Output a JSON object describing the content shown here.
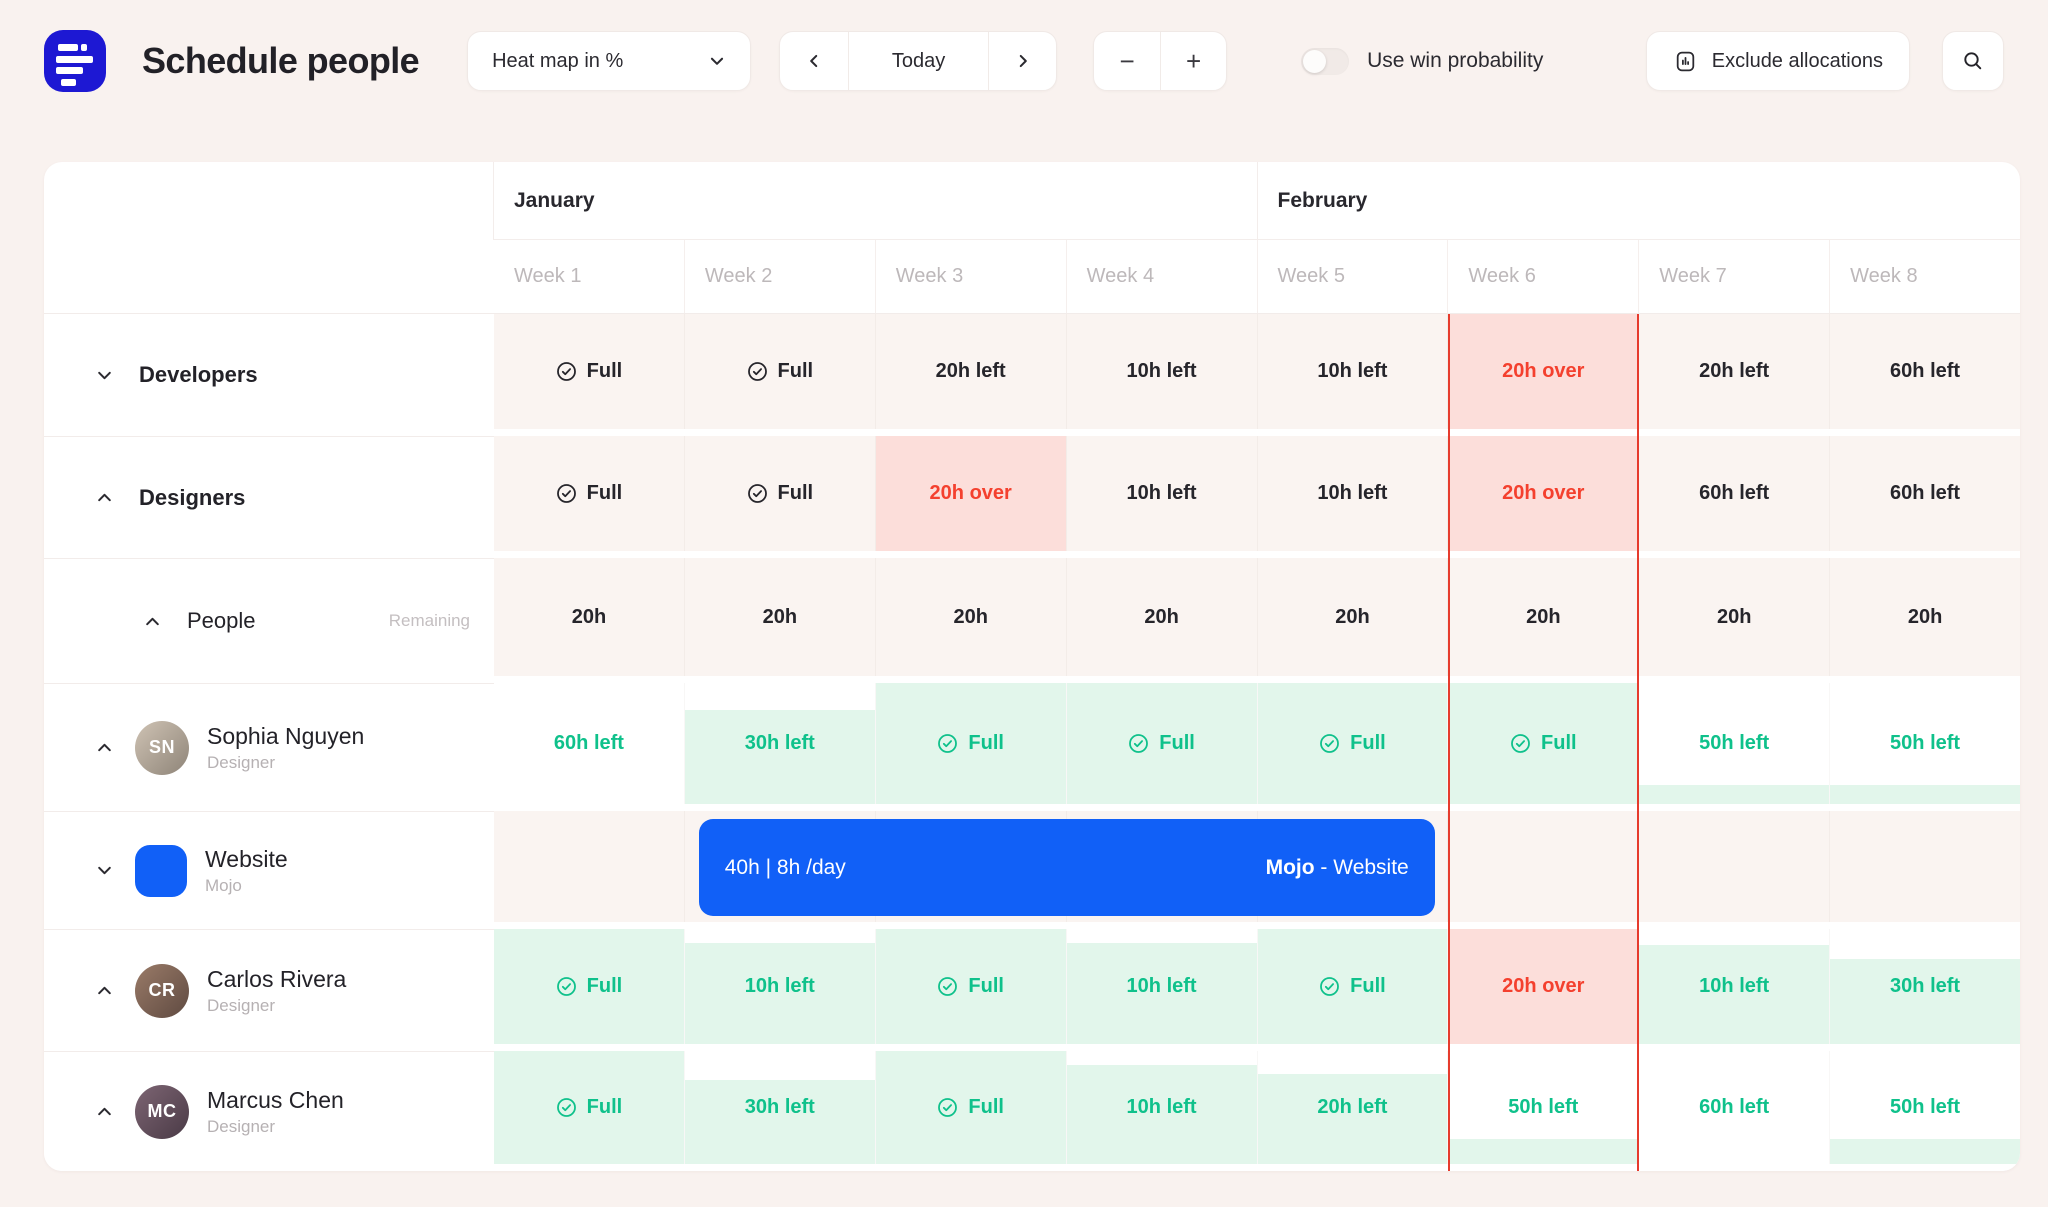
{
  "theme": {
    "page_bg": "#f9f2ef",
    "logo": "#1d18d3",
    "blue": "#1160f7",
    "green": "#0fc18b",
    "green_bg": "#e2f6eb",
    "red": "#f4402e",
    "red_bg": "#fcdeda",
    "red_line": "#e63b2d",
    "neutral_cell": "#faf4f1"
  },
  "toolbar": {
    "title": "Schedule people",
    "view_select": "Heat map in %",
    "prev": "‹",
    "today": "Today",
    "next": "›",
    "zoom_out": "−",
    "zoom_in": "+",
    "win_probability_label": "Use win probability",
    "win_probability_on": false,
    "exclude_allocations_label": "Exclude allocations"
  },
  "grid": {
    "months": [
      {
        "label": "January",
        "span": 4
      },
      {
        "label": "February",
        "span": 4
      }
    ],
    "weeks": [
      "Week 1",
      "Week 2",
      "Week 3",
      "Week 4",
      "Week 5",
      "Week 6",
      "Week 7",
      "Week 8"
    ],
    "current_week": "Week 6",
    "rows": [
      {
        "type": "group",
        "label": "Developers",
        "chev": "down",
        "cells": [
          {
            "text": "Full",
            "icon": true,
            "tone": "dark"
          },
          {
            "text": "Full",
            "icon": true,
            "tone": "dark"
          },
          {
            "text": "20h left",
            "tone": "dark"
          },
          {
            "text": "10h left",
            "tone": "dark"
          },
          {
            "text": "10h left",
            "tone": "dark"
          },
          {
            "text": "20h over",
            "tone": "red",
            "bg": "red"
          },
          {
            "text": "20h left",
            "tone": "dark"
          },
          {
            "text": "60h left",
            "tone": "dark"
          }
        ]
      },
      {
        "type": "group",
        "label": "Designers",
        "chev": "up",
        "cells": [
          {
            "text": "Full",
            "icon": true,
            "tone": "dark"
          },
          {
            "text": "Full",
            "icon": true,
            "tone": "dark"
          },
          {
            "text": "20h over",
            "tone": "red",
            "bg": "red"
          },
          {
            "text": "10h left",
            "tone": "dark"
          },
          {
            "text": "10h left",
            "tone": "dark"
          },
          {
            "text": "20h over",
            "tone": "red",
            "bg": "red"
          },
          {
            "text": "60h left",
            "tone": "dark"
          },
          {
            "text": "60h left",
            "tone": "dark"
          }
        ]
      },
      {
        "type": "subheader",
        "label": "People",
        "hint": "Remaining",
        "chev": "up",
        "cells": [
          {
            "text": "20h",
            "tone": "dark"
          },
          {
            "text": "20h",
            "tone": "dark"
          },
          {
            "text": "20h",
            "tone": "dark"
          },
          {
            "text": "20h",
            "tone": "dark"
          },
          {
            "text": "20h",
            "tone": "dark"
          },
          {
            "text": "20h",
            "tone": "dark"
          },
          {
            "text": "20h",
            "tone": "dark"
          },
          {
            "text": "20h",
            "tone": "dark"
          }
        ]
      },
      {
        "type": "person",
        "name": "Sophia Nguyen",
        "role": "Designer",
        "initials": "SN",
        "avatar_colors": [
          "#cfc3b4",
          "#8e8478"
        ],
        "chev": "up",
        "cells": [
          {
            "text": "60h left",
            "tone": "green",
            "fill": 0
          },
          {
            "text": "30h left",
            "tone": "green",
            "fill": 78
          },
          {
            "text": "Full",
            "icon": true,
            "tone": "green",
            "fill": 100
          },
          {
            "text": "Full",
            "icon": true,
            "tone": "green",
            "fill": 100
          },
          {
            "text": "Full",
            "icon": true,
            "tone": "green",
            "fill": 100
          },
          {
            "text": "Full",
            "icon": true,
            "tone": "green",
            "fill": 100
          },
          {
            "text": "50h left",
            "tone": "green",
            "fill": 16
          },
          {
            "text": "50h left",
            "tone": "green",
            "fill": 16
          }
        ]
      },
      {
        "type": "project",
        "name": "Website",
        "client": "Mojo",
        "chev": "down",
        "cells": [
          {},
          {},
          {},
          {},
          {},
          {},
          {},
          {}
        ],
        "bar": {
          "left_label": "40h | 8h /day",
          "right_bold": "Mojo",
          "right_rest": " - Website"
        }
      },
      {
        "type": "person",
        "name": "Carlos Rivera",
        "role": "Designer",
        "initials": "CR",
        "avatar_colors": [
          "#9a7b68",
          "#5f4a41"
        ],
        "chev": "up",
        "cells": [
          {
            "text": "Full",
            "icon": true,
            "tone": "green",
            "fill": 100
          },
          {
            "text": "10h left",
            "tone": "green",
            "fill": 88
          },
          {
            "text": "Full",
            "icon": true,
            "tone": "green",
            "fill": 100
          },
          {
            "text": "10h left",
            "tone": "green",
            "fill": 88
          },
          {
            "text": "Full",
            "icon": true,
            "tone": "green",
            "fill": 100
          },
          {
            "text": "20h over",
            "tone": "red",
            "bg": "red",
            "fill": 100
          },
          {
            "text": "10h left",
            "tone": "green",
            "fill": 86
          },
          {
            "text": "30h left",
            "tone": "green",
            "fill": 74
          }
        ]
      },
      {
        "type": "person",
        "name": "Marcus Chen",
        "role": "Designer",
        "initials": "MC",
        "avatar_colors": [
          "#7d6573",
          "#4a3a46"
        ],
        "chev": "up",
        "cells": [
          {
            "text": "Full",
            "icon": true,
            "tone": "green",
            "fill": 100
          },
          {
            "text": "30h left",
            "tone": "green",
            "fill": 74
          },
          {
            "text": "Full",
            "icon": true,
            "tone": "green",
            "fill": 100
          },
          {
            "text": "10h left",
            "tone": "green",
            "fill": 88
          },
          {
            "text": "20h left",
            "tone": "green",
            "fill": 80
          },
          {
            "text": "50h left",
            "tone": "green",
            "fill": 22
          },
          {
            "text": "60h left",
            "tone": "green",
            "fill": 0
          },
          {
            "text": "50h left",
            "tone": "green",
            "fill": 22
          }
        ]
      }
    ]
  }
}
